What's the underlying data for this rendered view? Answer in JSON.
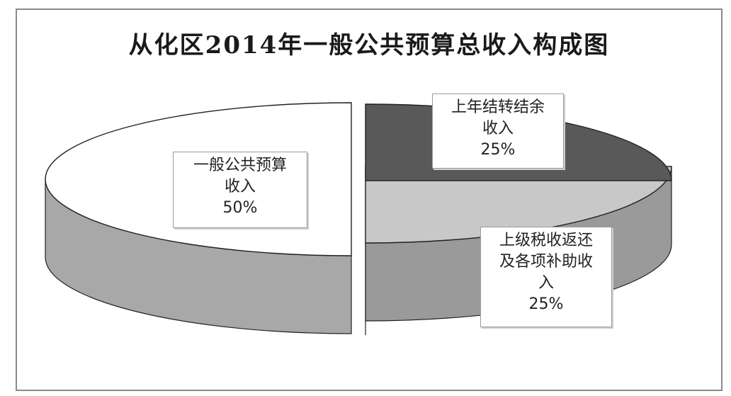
{
  "chart_data": {
    "type": "pie",
    "title": "从化区2014年一般公共预算总收入构成图",
    "slices": [
      {
        "label_lines": [
          "一般公共预算",
          "收入"
        ],
        "value": 50,
        "value_text": "50%",
        "top_color": "#ffffff",
        "side_color": "#a8a8a8"
      },
      {
        "label_lines": [
          "上年结转结余",
          "收入"
        ],
        "value": 25,
        "value_text": "25%",
        "top_color": "#c8c8c8",
        "side_color": "#9a9a9a"
      },
      {
        "label_lines": [
          "上级税收返还",
          "及各项补助收",
          "入"
        ],
        "value": 25,
        "value_text": "25%",
        "top_color": "#595959",
        "side_color": "#262626"
      }
    ],
    "legend": "none",
    "pie_style": "3d-exploded"
  }
}
